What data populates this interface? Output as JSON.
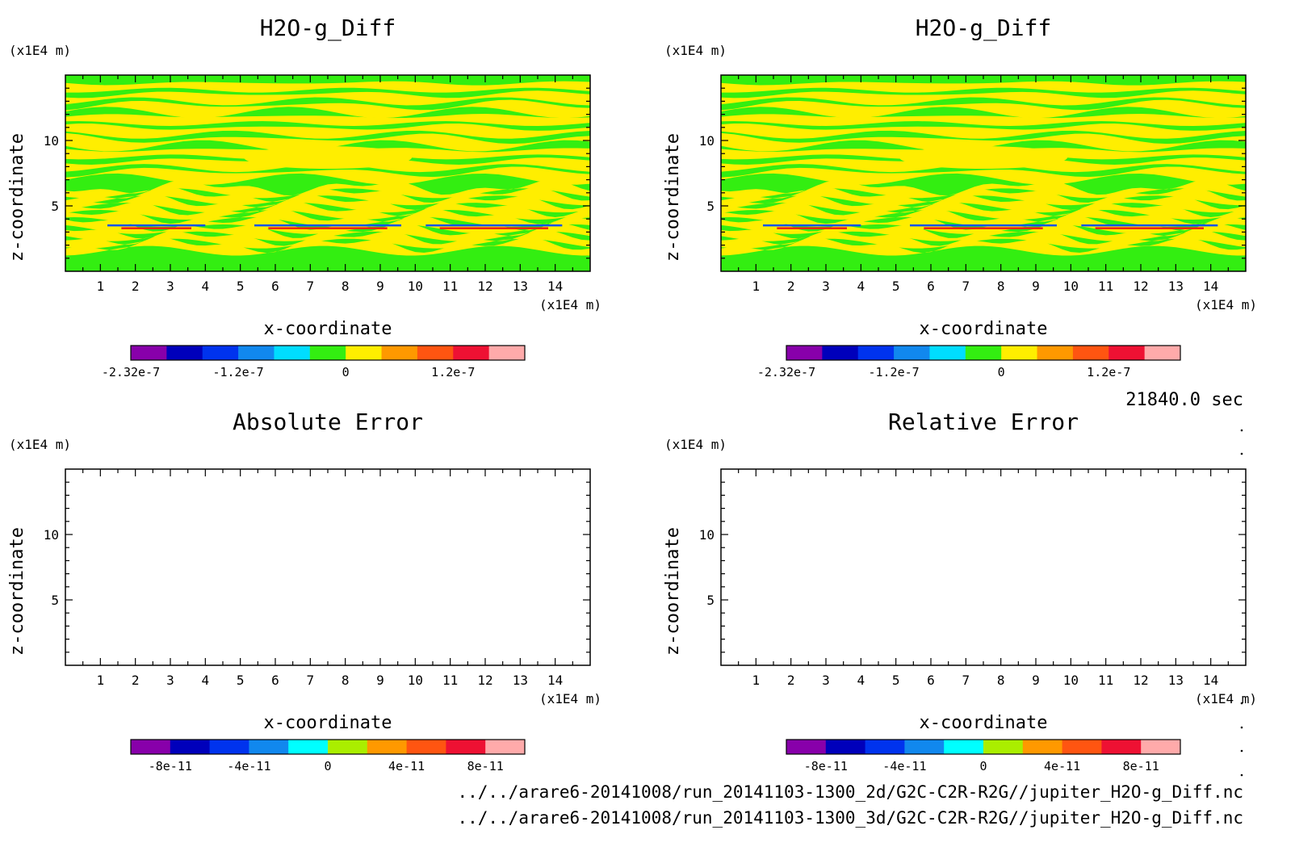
{
  "time_label": "21840.0 sec",
  "file_paths": [
    "../../arare6-20141008/run_20141103-1300_2d/G2C-C2R-R2G//jupiter_H2O-g_Diff.nc",
    "../../arare6-20141008/run_20141103-1300_3d/G2C-C2R-R2G//jupiter_H2O-g_Diff.nc"
  ],
  "colors": {
    "contour_green": "#33ee11",
    "contour_yellow": "#ffee00",
    "contour_blue": "#1155ee",
    "contour_red": "#ee2211"
  },
  "chart_data": [
    {
      "type": "heatmap",
      "title": "H2O-g_Diff",
      "xlabel": "x-coordinate",
      "ylabel": "z-coordinate",
      "x_unit": "(x1E4 m)",
      "y_unit": "(x1E4 m)",
      "xlim": [
        0,
        15
      ],
      "ylim": [
        0,
        15
      ],
      "x_ticks": [
        1,
        2,
        3,
        4,
        5,
        6,
        7,
        8,
        9,
        10,
        11,
        12,
        13,
        14
      ],
      "y_ticks": [
        5,
        10
      ],
      "filled": true,
      "colorbar": {
        "colors": [
          "#8800aa",
          "#0000bb",
          "#0033ee",
          "#1188ee",
          "#00ddff",
          "#33ee11",
          "#ffee00",
          "#ff9900",
          "#ff5511",
          "#ee1133",
          "#ffaaaa"
        ],
        "labels": [
          "-2.32e-7",
          "-1.2e-7",
          "0",
          "1.2e-7"
        ],
        "label_at_boundary": [
          0,
          3,
          6,
          9
        ]
      }
    },
    {
      "type": "heatmap",
      "title": "H2O-g_Diff",
      "xlabel": "x-coordinate",
      "ylabel": "z-coordinate",
      "x_unit": "(x1E4 m)",
      "y_unit": "(x1E4 m)",
      "xlim": [
        0,
        15
      ],
      "ylim": [
        0,
        15
      ],
      "x_ticks": [
        1,
        2,
        3,
        4,
        5,
        6,
        7,
        8,
        9,
        10,
        11,
        12,
        13,
        14
      ],
      "y_ticks": [
        5,
        10
      ],
      "filled": true,
      "colorbar": {
        "colors": [
          "#8800aa",
          "#0000bb",
          "#0033ee",
          "#1188ee",
          "#00ddff",
          "#33ee11",
          "#ffee00",
          "#ff9900",
          "#ff5511",
          "#ee1133",
          "#ffaaaa"
        ],
        "labels": [
          "-2.32e-7",
          "-1.2e-7",
          "0",
          "1.2e-7"
        ],
        "label_at_boundary": [
          0,
          3,
          6,
          9
        ]
      }
    },
    {
      "type": "heatmap",
      "title": "Absolute Error",
      "xlabel": "x-coordinate",
      "ylabel": "z-coordinate",
      "x_unit": "(x1E4 m)",
      "y_unit": "(x1E4 m)",
      "xlim": [
        0,
        15
      ],
      "ylim": [
        0,
        15
      ],
      "x_ticks": [
        1,
        2,
        3,
        4,
        5,
        6,
        7,
        8,
        9,
        10,
        11,
        12,
        13,
        14
      ],
      "y_ticks": [
        5,
        10
      ],
      "filled": false,
      "colorbar": {
        "colors": [
          "#8800aa",
          "#0000bb",
          "#0033ee",
          "#1188ee",
          "#00ffff",
          "#aaee00",
          "#ff9900",
          "#ff5511",
          "#ee1133",
          "#ffaaaa"
        ],
        "labels": [
          "-8e-11",
          "-4e-11",
          "0",
          "4e-11",
          "8e-11"
        ],
        "label_at_boundary": [
          1,
          3,
          5,
          7,
          9
        ]
      }
    },
    {
      "type": "heatmap",
      "title": "Relative Error",
      "xlabel": "x-coordinate",
      "ylabel": "z-coordinate",
      "x_unit": "(x1E4 m)",
      "y_unit": "(x1E4 m)",
      "xlim": [
        0,
        15
      ],
      "ylim": [
        0,
        15
      ],
      "x_ticks": [
        1,
        2,
        3,
        4,
        5,
        6,
        7,
        8,
        9,
        10,
        11,
        12,
        13,
        14
      ],
      "y_ticks": [
        5,
        10
      ],
      "filled": false,
      "colorbar": {
        "colors": [
          "#8800aa",
          "#0000bb",
          "#0033ee",
          "#1188ee",
          "#00ffff",
          "#aaee00",
          "#ff9900",
          "#ff5511",
          "#ee1133",
          "#ffaaaa"
        ],
        "labels": [
          "-8e-11",
          "-4e-11",
          "0",
          "4e-11",
          "8e-11"
        ],
        "label_at_boundary": [
          1,
          3,
          5,
          7,
          9
        ]
      }
    }
  ]
}
